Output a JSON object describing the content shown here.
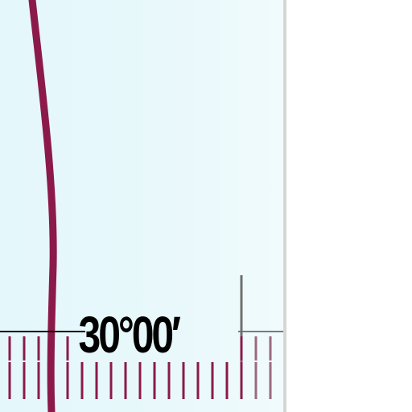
{
  "map": {
    "latitude_label": "30°00′",
    "colors": {
      "water": "#e4f7fb",
      "route_line": "#8b1a4a",
      "tick_marks": "#8b1a4a",
      "grid_line": "#000000",
      "border": "#d6d6d6"
    }
  }
}
